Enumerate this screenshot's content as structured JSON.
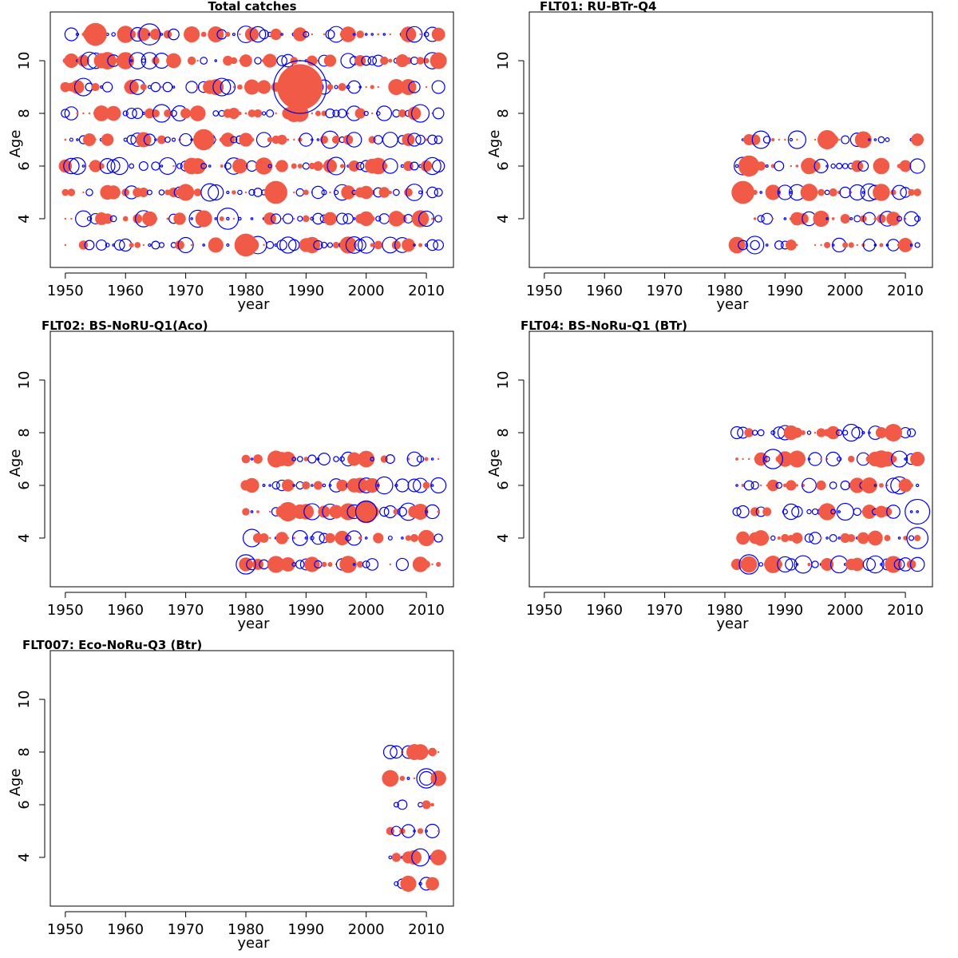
{
  "figure": {
    "title": "",
    "type": "bubble residual panels"
  },
  "legend": {
    "positive_color": "#F05A46",
    "negative_color": "#0000EE"
  },
  "chart_data": [
    {
      "type": "scatter",
      "title": "Total catches",
      "xlabel": "year",
      "ylabel": "Age",
      "xlim": [
        1947.5,
        2014.5
      ],
      "ylim": [
        2.15,
        11.85
      ],
      "xticks": [
        1950,
        1960,
        1970,
        1980,
        1990,
        2000,
        2010
      ],
      "yticks": [
        4,
        6,
        8,
        10
      ],
      "years": [
        1950,
        2012
      ],
      "ages": [
        3,
        4,
        5,
        6,
        7,
        8,
        9,
        10,
        11
      ],
      "highlights": [
        {
          "year": 1989,
          "age": 9,
          "sign": -1,
          "size": 3.0
        },
        {
          "year": 1989,
          "age": 9,
          "sign": 1,
          "size": 2.6
        },
        {
          "year": 1955,
          "age": 11,
          "sign": 1,
          "size": 1.3
        },
        {
          "year": 1964,
          "age": 11,
          "sign": -1,
          "size": 1.2
        },
        {
          "year": 1980,
          "age": 3,
          "sign": 1,
          "size": 1.3
        },
        {
          "year": 1977,
          "age": 4,
          "sign": -1,
          "size": 1.2
        },
        {
          "year": 1985,
          "age": 5,
          "sign": 1,
          "size": 1.3
        },
        {
          "year": 1973,
          "age": 7,
          "sign": 1,
          "size": 1.2
        }
      ]
    },
    {
      "type": "scatter",
      "title": "FLT01: RU-BTr-Q4",
      "xlabel": "year",
      "ylabel": "Age",
      "xlim": [
        1947.5,
        2014.5
      ],
      "ylim": [
        2.15,
        11.85
      ],
      "xticks": [
        1950,
        1960,
        1970,
        1980,
        1990,
        2000,
        2010
      ],
      "yticks": [
        4,
        6,
        8,
        10
      ],
      "years": [
        1982,
        2012
      ],
      "ages": [
        3,
        4,
        5,
        6,
        7
      ],
      "highlights": [
        {
          "year": 1983,
          "age": 5,
          "sign": 1,
          "size": 1.3
        },
        {
          "year": 1984,
          "age": 6,
          "sign": 1,
          "size": 1.2
        },
        {
          "year": 1997,
          "age": 7,
          "sign": 1,
          "size": 1.1
        },
        {
          "year": 1992,
          "age": 7,
          "sign": -1,
          "size": 1.0
        },
        {
          "year": 1985,
          "age": 3,
          "sign": -1,
          "size": 1.0
        }
      ]
    },
    {
      "type": "scatter",
      "title": "FLT02: BS-NoRU-Q1(Aco)",
      "xlabel": "year",
      "ylabel": "Age",
      "xlim": [
        1947.5,
        2014.5
      ],
      "ylim": [
        2.15,
        11.85
      ],
      "xticks": [
        1950,
        1960,
        1970,
        1980,
        1990,
        2000,
        2010
      ],
      "yticks": [
        4,
        6,
        8,
        10
      ],
      "years": [
        1980,
        2012
      ],
      "ages": [
        3,
        4,
        5,
        6,
        7
      ],
      "highlights": [
        {
          "year": 2000,
          "age": 5,
          "sign": 1,
          "size": 1.3
        },
        {
          "year": 2000,
          "age": 5,
          "sign": -1,
          "size": 1.2
        },
        {
          "year": 1987,
          "age": 5,
          "sign": 1,
          "size": 1.1
        },
        {
          "year": 1980,
          "age": 3,
          "sign": -1,
          "size": 1.1
        }
      ]
    },
    {
      "type": "scatter",
      "title": "FLT04: BS-NoRu-Q1 (BTr)",
      "xlabel": "year",
      "ylabel": "Age",
      "xlim": [
        1947.5,
        2014.5
      ],
      "ylim": [
        2.15,
        11.85
      ],
      "xticks": [
        1950,
        1960,
        1970,
        1980,
        1990,
        2000,
        2010
      ],
      "yticks": [
        4,
        6,
        8,
        10
      ],
      "years": [
        1982,
        2012
      ],
      "ages": [
        3,
        4,
        5,
        6,
        7,
        8
      ],
      "highlights": [
        {
          "year": 2012,
          "age": 5,
          "sign": -1,
          "size": 1.4
        },
        {
          "year": 2012,
          "age": 4,
          "sign": -1,
          "size": 1.2
        },
        {
          "year": 1984,
          "age": 3,
          "sign": -1,
          "size": 1.1
        },
        {
          "year": 1988,
          "age": 7,
          "sign": -1,
          "size": 1.1
        },
        {
          "year": 2008,
          "age": 8,
          "sign": 1,
          "size": 1.0
        }
      ]
    },
    {
      "type": "scatter",
      "title": "FLT007: Eco-NoRu-Q3 (Btr)",
      "xlabel": "year",
      "ylabel": "Age",
      "xlim": [
        1947.5,
        2014.5
      ],
      "ylim": [
        2.15,
        11.85
      ],
      "xticks": [
        1950,
        1960,
        1970,
        1980,
        1990,
        2000,
        2010
      ],
      "yticks": [
        4,
        6,
        8,
        10
      ],
      "years": [
        2004,
        2012
      ],
      "ages": [
        3,
        4,
        5,
        6,
        7,
        8
      ],
      "highlights": [
        {
          "year": 2010,
          "age": 7,
          "sign": -1,
          "size": 1.1
        },
        {
          "year": 2012,
          "age": 4,
          "sign": 1,
          "size": 0.9
        },
        {
          "year": 2009,
          "age": 8,
          "sign": 1,
          "size": 0.9
        }
      ]
    }
  ]
}
